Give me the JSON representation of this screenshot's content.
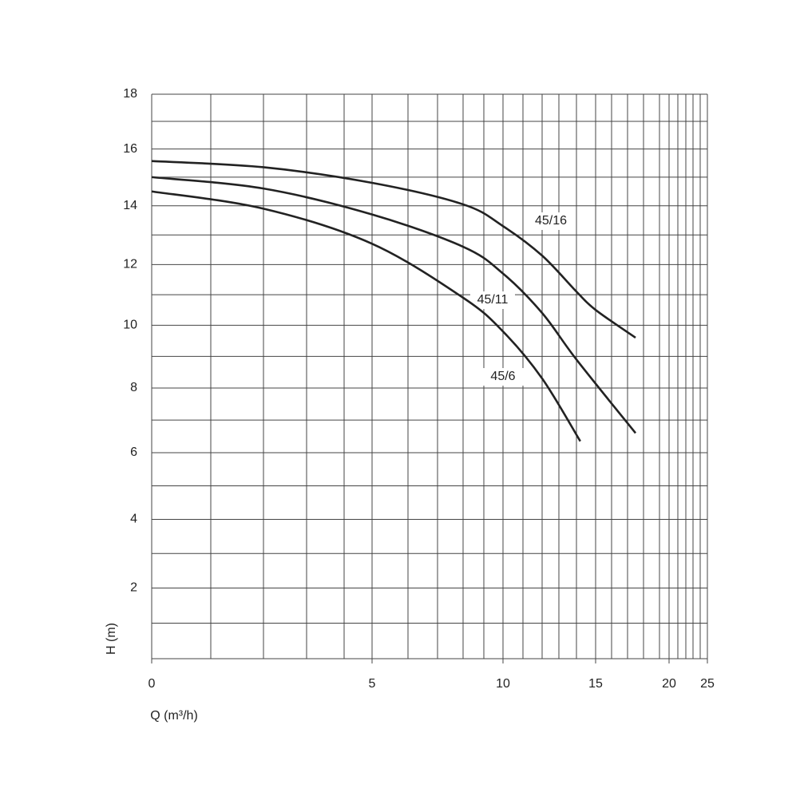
{
  "chart_data": {
    "type": "line",
    "x_label": "Q (m³/h)",
    "y_label": "H (m)",
    "xlim": [
      0,
      25
    ],
    "xticks": [
      0,
      5,
      10,
      15,
      20,
      25
    ],
    "ylim": [
      0,
      18
    ],
    "yticks": [
      2,
      4,
      6,
      8,
      10,
      12,
      14,
      16,
      18
    ],
    "grid": true,
    "series": [
      {
        "name": "45/16",
        "color": "#222222",
        "x": [
          0,
          2,
          5,
          8,
          10,
          12,
          14,
          15,
          17.5
        ],
        "values": [
          15.57,
          15.35,
          14.8,
          14.05,
          13.3,
          12.3,
          11.1,
          10.5,
          9.6
        ]
      },
      {
        "name": "45/11",
        "color": "#222222",
        "x": [
          0,
          2,
          5,
          8,
          10,
          12,
          14,
          17.5
        ],
        "values": [
          15.0,
          14.6,
          13.7,
          12.6,
          11.7,
          10.4,
          8.9,
          6.6
        ]
      },
      {
        "name": "45/6",
        "color": "#222222",
        "x": [
          0,
          2,
          5,
          8,
          10,
          12,
          14.2
        ],
        "values": [
          14.5,
          13.9,
          12.7,
          10.9,
          9.8,
          8.3,
          6.35
        ]
      }
    ]
  }
}
